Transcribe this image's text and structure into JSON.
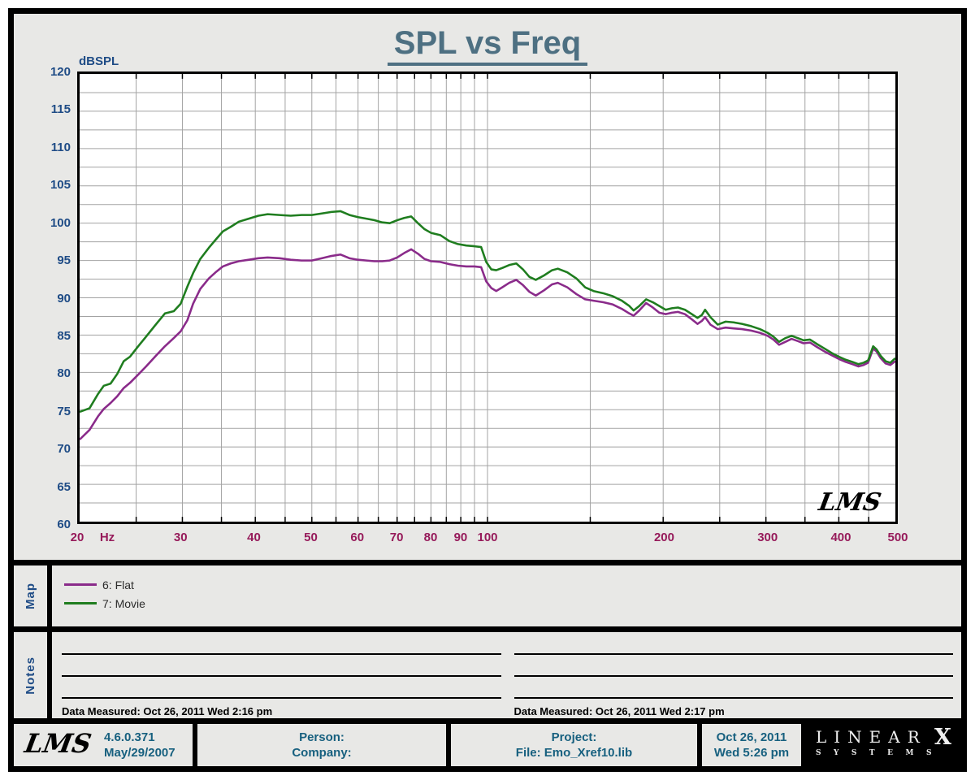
{
  "title": "SPL vs Freq",
  "colors": {
    "title": "#4e7082",
    "navy": "#1f4c86",
    "maroon": "#961a5a",
    "teal": "#17607f",
    "grid": "#a3a3a3",
    "flat_purple": "#8a2b8a",
    "movie_green": "#1f7d1f"
  },
  "chart_data": {
    "type": "line",
    "title": "SPL vs Freq",
    "xlabel": "Hz",
    "ylabel": "dBSPL",
    "x_axis": {
      "scale": "log",
      "min": 20,
      "max": 500,
      "tick_labels": [
        20,
        30,
        40,
        50,
        60,
        70,
        80,
        90,
        100,
        200,
        300,
        400,
        500
      ],
      "grid_freqs": [
        25,
        30,
        35,
        40,
        45,
        50,
        55,
        60,
        65,
        70,
        75,
        80,
        85,
        90,
        95,
        100,
        150,
        200,
        250,
        300,
        350,
        400,
        450
      ],
      "unit_label": "Hz"
    },
    "y_axis": {
      "min": 60,
      "max": 120,
      "label_step": 5,
      "grid_step": 2.5
    },
    "watermark": "LMS",
    "freqs": [
      20,
      20.8,
      21.5,
      22,
      22.6,
      23.2,
      23.8,
      24.4,
      25.2,
      26,
      27,
      28,
      29,
      29.8,
      30.6,
      31.3,
      32.2,
      33.3,
      34.3,
      35.2,
      36.3,
      37.5,
      39,
      40.5,
      42,
      44,
      46,
      48,
      50,
      52,
      54,
      56,
      58,
      60,
      62,
      64,
      66,
      68,
      70,
      72,
      74,
      76,
      78,
      80,
      83,
      86,
      89,
      92,
      95,
      97.5,
      99.5,
      101.5,
      103.5,
      106,
      109,
      112,
      115,
      118,
      121,
      125,
      129,
      132,
      137,
      142,
      147,
      152,
      158,
      164,
      170,
      175,
      178,
      182,
      187,
      192,
      197,
      202,
      207,
      212,
      218,
      224,
      229,
      233,
      236,
      241,
      248,
      256,
      264,
      273,
      283,
      293,
      302,
      309,
      316,
      324,
      332,
      340,
      348,
      357,
      367,
      378,
      389,
      400,
      411,
      422,
      432,
      441,
      449,
      458,
      464,
      472,
      481,
      490,
      500
    ],
    "series": [
      {
        "name": "6: Flat",
        "color": "#8a2b8a",
        "values": [
          71,
          72.3,
          74.1,
          75.1,
          75.9,
          76.8,
          77.9,
          78.6,
          79.7,
          80.8,
          82.2,
          83.5,
          84.6,
          85.5,
          87,
          89.2,
          91.2,
          92.6,
          93.5,
          94.2,
          94.6,
          94.9,
          95.1,
          95.3,
          95.4,
          95.3,
          95.1,
          95,
          95,
          95.3,
          95.6,
          95.8,
          95.3,
          95.1,
          95,
          94.9,
          94.9,
          95,
          95.4,
          96,
          96.5,
          95.9,
          95.2,
          94.9,
          94.8,
          94.5,
          94.3,
          94.2,
          94.2,
          94.1,
          92.2,
          91.3,
          90.9,
          91.4,
          92,
          92.4,
          91.7,
          90.8,
          90.3,
          91,
          91.8,
          92,
          91.4,
          90.5,
          89.8,
          89.6,
          89.4,
          89.1,
          88.5,
          87.9,
          87.6,
          88.3,
          89.3,
          88.7,
          88,
          87.8,
          88,
          88.1,
          87.8,
          87.1,
          86.5,
          86.9,
          87.4,
          86.4,
          85.8,
          86,
          85.9,
          85.8,
          85.6,
          85.3,
          84.9,
          84.4,
          83.7,
          84.1,
          84.5,
          84.2,
          83.9,
          84,
          83.4,
          82.8,
          82.3,
          81.8,
          81.4,
          81.1,
          80.8,
          81,
          81.3,
          83.2,
          82.8,
          81.9,
          81.2,
          81,
          81.5
        ]
      },
      {
        "name": "7: Movie",
        "color": "#1f7d1f",
        "values": [
          74.7,
          75.2,
          77.1,
          78.2,
          78.5,
          79.8,
          81.5,
          82.1,
          83.5,
          84.8,
          86.4,
          87.9,
          88.2,
          89.2,
          91.5,
          93.3,
          95.2,
          96.7,
          97.9,
          98.9,
          99.5,
          100.2,
          100.6,
          101,
          101.2,
          101.1,
          101,
          101.1,
          101.1,
          101.3,
          101.5,
          101.6,
          101.1,
          100.8,
          100.6,
          100.4,
          100.1,
          100,
          100.4,
          100.7,
          100.9,
          100,
          99.2,
          98.7,
          98.4,
          97.6,
          97.2,
          97,
          96.9,
          96.8,
          94.8,
          93.8,
          93.7,
          94,
          94.4,
          94.6,
          93.8,
          92.8,
          92.4,
          93,
          93.7,
          93.9,
          93.4,
          92.6,
          91.4,
          90.9,
          90.6,
          90.2,
          89.6,
          88.9,
          88.3,
          88.9,
          89.8,
          89.4,
          88.9,
          88.4,
          88.6,
          88.7,
          88.4,
          87.8,
          87.3,
          87.7,
          88.4,
          87.4,
          86.4,
          86.8,
          86.7,
          86.5,
          86.2,
          85.8,
          85.3,
          84.8,
          84.1,
          84.6,
          84.9,
          84.6,
          84.3,
          84.4,
          83.8,
          83.2,
          82.6,
          82.1,
          81.7,
          81.4,
          81.1,
          81.3,
          81.6,
          83.5,
          83.1,
          82.2,
          81.5,
          81.3,
          81.9
        ]
      }
    ]
  },
  "map_section": {
    "label": "Map",
    "legend": [
      {
        "name": "6: Flat",
        "color": "#8a2b8a"
      },
      {
        "name": "7: Movie",
        "color": "#1f7d1f"
      }
    ]
  },
  "notes_section": {
    "label": "Notes",
    "columns": [
      {
        "blank_lines": 3,
        "data_measured": "Data Measured: Oct 26, 2011  Wed  2:16 pm"
      },
      {
        "blank_lines": 3,
        "data_measured": "Data Measured: Oct 26, 2011  Wed  2:17 pm"
      }
    ]
  },
  "footer": {
    "lms_logo": "LMS",
    "version": "4.6.0.371",
    "version_date": "May/29/2007",
    "person_label": "Person:",
    "company_label": "Company:",
    "project_label": "Project:",
    "file_label": "File: Emo_Xref10.lib",
    "date": "Oct 26, 2011",
    "time": "Wed  5:26 pm",
    "brand": {
      "linear": "LINEAR",
      "x": "X",
      "systems": "SYSTEMS"
    }
  }
}
